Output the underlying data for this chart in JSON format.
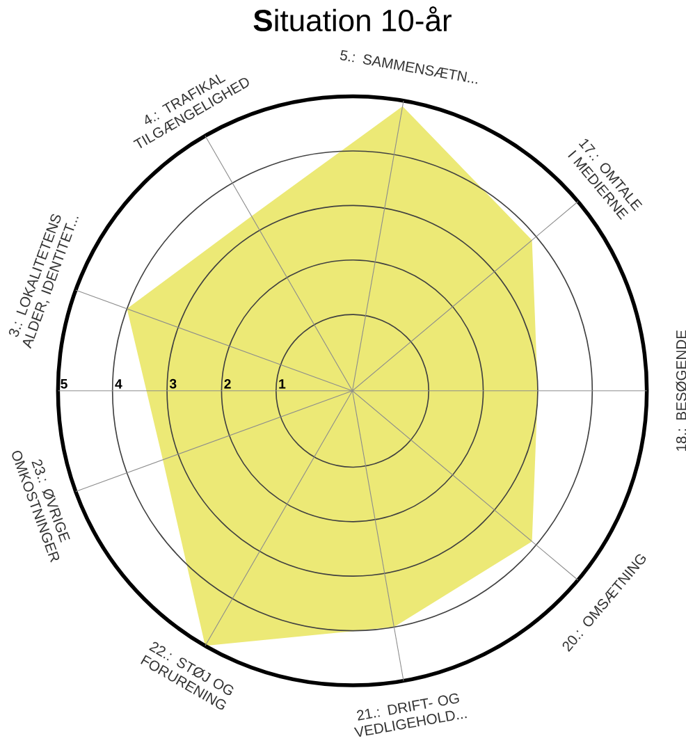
{
  "chart_data": {
    "type": "radar",
    "title": "**S**ituation 10-år",
    "categories": [
      "5.: SAMMENSÆTN...",
      "17.: OMTALE I MEDIERNE",
      "18.: BESØGENDE",
      "20.: OMSÆTNING",
      "21.: DRIFT- OG VEDLIGEHOLD...",
      "22.: STØJ OG FORURENING",
      "23.: ØVRIGE OMKOSTNINGER",
      "3.: LOKALITETENS ALDER, IDENTITET...",
      "4.: TRAFIKAL TILGÆNGELIGHED"
    ],
    "series": [
      {
        "color": "#ece976",
        "values": [
          4.9,
          3.9,
          3.0,
          3.9,
          4.0,
          5.0,
          3.3,
          4.0,
          3.3
        ]
      }
    ],
    "ylim": [
      -0.4,
      5
    ],
    "yticks": [
      1,
      2,
      3,
      4,
      5
    ],
    "grid": true
  }
}
